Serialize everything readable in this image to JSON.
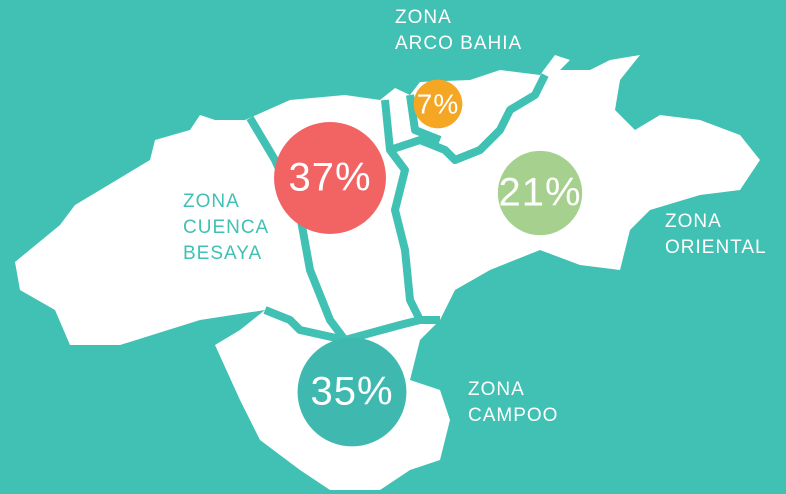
{
  "map": {
    "zones": [
      {
        "name_lines": [
          "ZONA",
          "CUENCA",
          "BESAYA"
        ],
        "value": 37,
        "value_label": "37%",
        "color": "#f26464"
      },
      {
        "name_lines": [
          "ZONA",
          "ARCO BAHIA"
        ],
        "value": 7,
        "value_label": "7%",
        "color": "#f5a623"
      },
      {
        "name_lines": [
          "ZONA",
          "ORIENTAL"
        ],
        "value": 21,
        "value_label": "21%",
        "color": "#a6d08e"
      },
      {
        "name_lines": [
          "ZONA",
          "CAMPOO"
        ],
        "value": 35,
        "value_label": "35%",
        "color": "#3fb8b0"
      }
    ]
  }
}
